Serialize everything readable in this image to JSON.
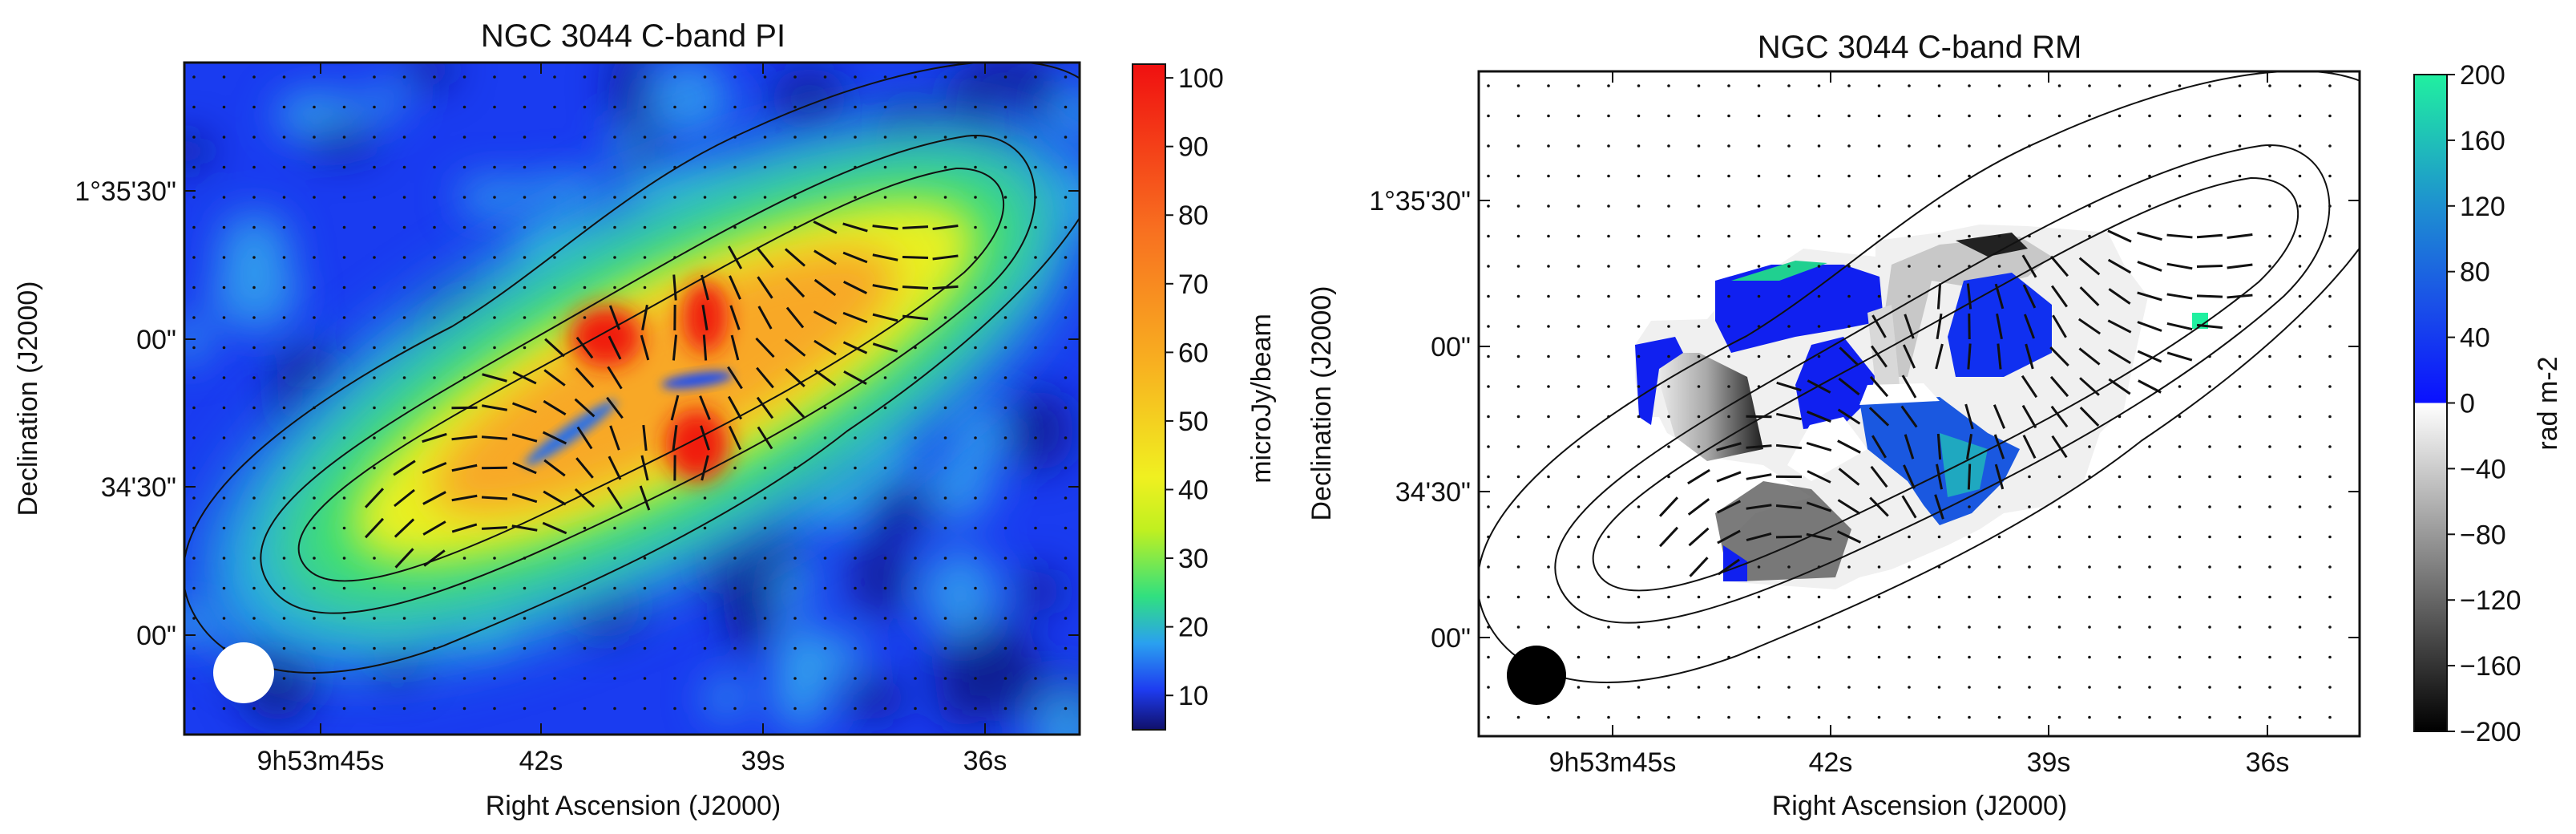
{
  "chart_data": [
    {
      "type": "heatmap",
      "title": "NGC 3044   C-band  PI",
      "xlabel": "Right Ascension (J2000)",
      "ylabel": "Declination (J2000)",
      "x_ticks": [
        "9h53m45s",
        "42s",
        "39s",
        "36s"
      ],
      "y_ticks": [
        "1°35'30\"",
        "00\"",
        "34'30\"",
        "00\""
      ],
      "colorbar": {
        "label": "microJy/beam",
        "ticks": [
          "100",
          "90",
          "80",
          "70",
          "60",
          "50",
          "40",
          "30",
          "20",
          "10"
        ],
        "range": [
          5,
          102
        ],
        "colormap": [
          "#10106a",
          "#1e3cf0",
          "#2aa0f0",
          "#30e080",
          "#f0f020",
          "#f8a020",
          "#f02010"
        ]
      },
      "beam_color": "#ffffff",
      "overlays": [
        "total intensity contours",
        "magnetic field vectors"
      ]
    },
    {
      "type": "heatmap",
      "title": "NGC 3044   C-band   RM",
      "xlabel": "Right Ascension (J2000)",
      "ylabel": "Declination (J2000)",
      "x_ticks": [
        "9h53m45s",
        "42s",
        "39s",
        "36s"
      ],
      "y_ticks": [
        "1°35'30\"",
        "00\"",
        "34'30\"",
        "00\""
      ],
      "colorbar": {
        "label": "rad m-2",
        "ticks": [
          "200",
          "160",
          "120",
          "80",
          "40",
          "0",
          "−40",
          "−80",
          "−120",
          "−160",
          "−200"
        ],
        "range": [
          -200,
          200
        ],
        "colormap": [
          "#000000",
          "#ffffff",
          "#0a1cff",
          "#1e7ae0",
          "#20f0a0"
        ]
      },
      "beam_color": "#000000",
      "overlays": [
        "total intensity contours",
        "magnetic field vectors"
      ]
    }
  ]
}
